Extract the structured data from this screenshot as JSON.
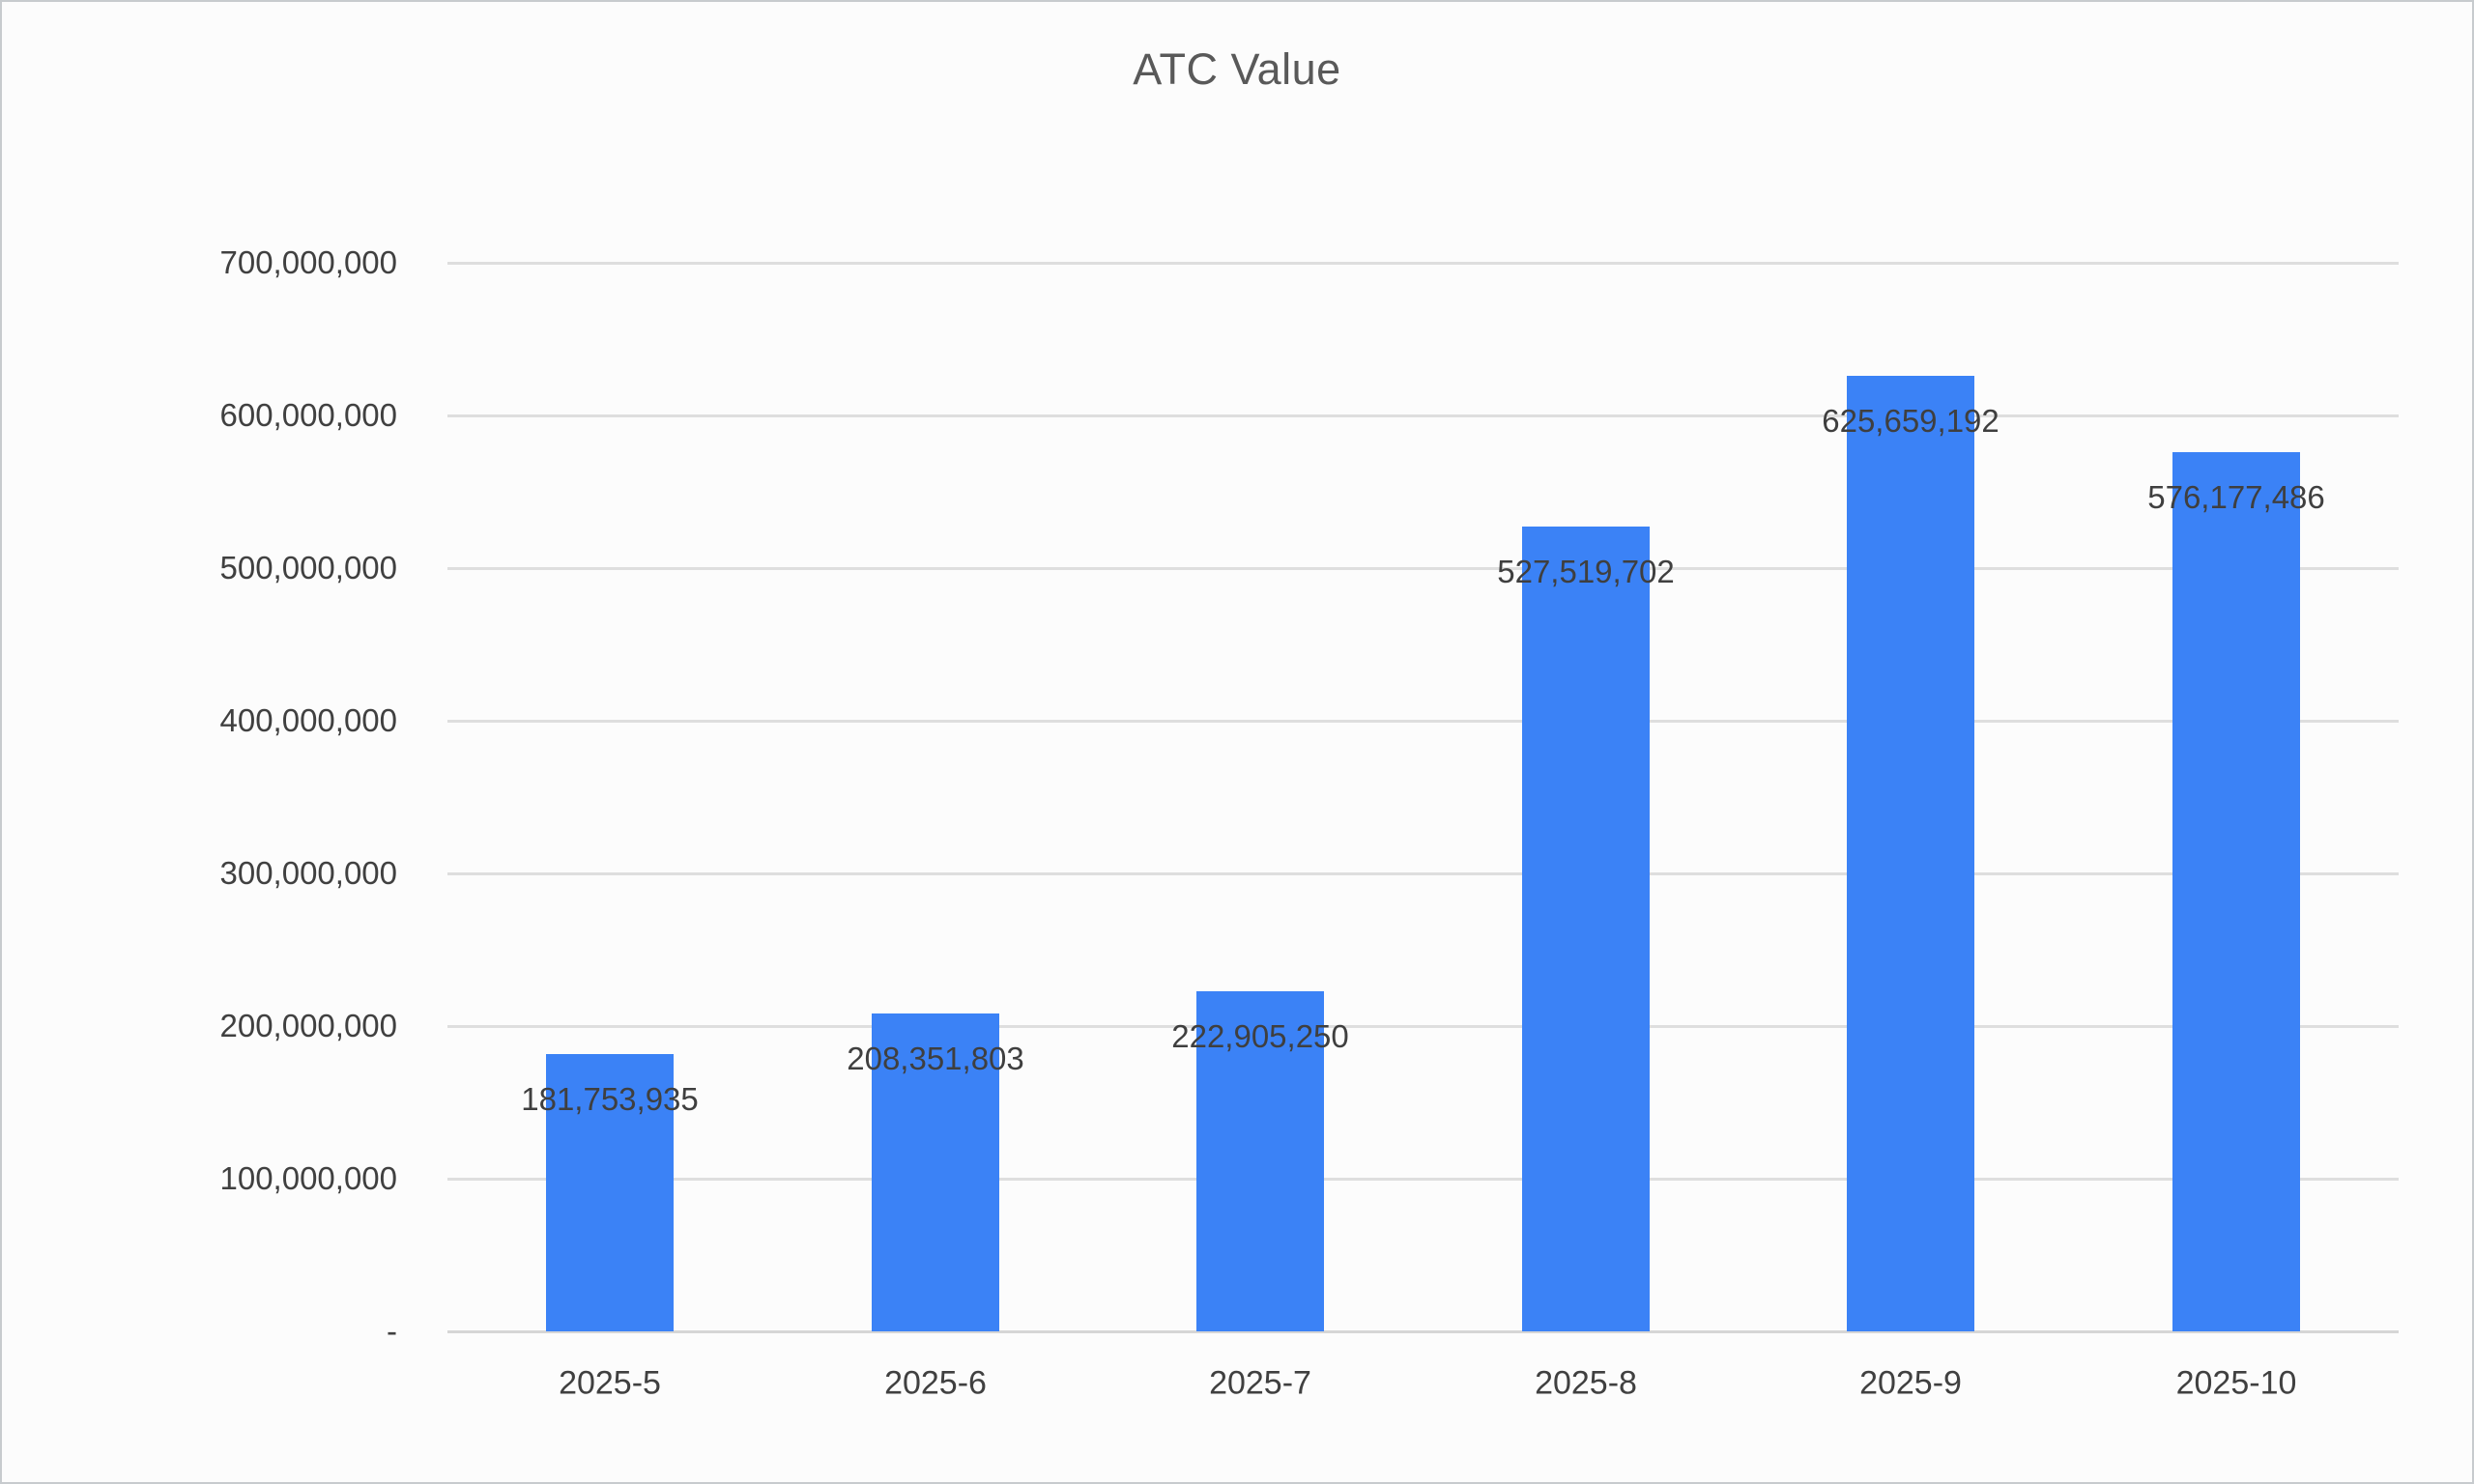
{
  "chart_data": {
    "type": "bar",
    "title": "ATC Value",
    "categories": [
      "2025-5",
      "2025-6",
      "2025-7",
      "2025-8",
      "2025-9",
      "2025-10"
    ],
    "values": [
      181753935,
      208351803,
      222905250,
      527519702,
      625659192,
      576177486
    ],
    "data_labels": [
      "181,753,935",
      "208,351,803",
      "222,905,250",
      "527,519,702",
      "625,659,192",
      "576,177,486"
    ],
    "xlabel": "",
    "ylabel": "",
    "ylim": [
      0,
      700000000
    ],
    "y_axis": {
      "tick_values": [
        700000000,
        600000000,
        500000000,
        400000000,
        300000000,
        200000000,
        100000000,
        0
      ],
      "tick_labels": [
        "700,000,000",
        "600,000,000",
        "500,000,000",
        "400,000,000",
        "300,000,000",
        "200,000,000",
        "100,000,000",
        "-"
      ]
    },
    "grid": true,
    "legend": false,
    "bar_color": "#3B82F6",
    "title_color": "#595959",
    "label_color": "#404040",
    "gridline_color": "#DEDEDE",
    "background_color": "#FCFCFC"
  }
}
